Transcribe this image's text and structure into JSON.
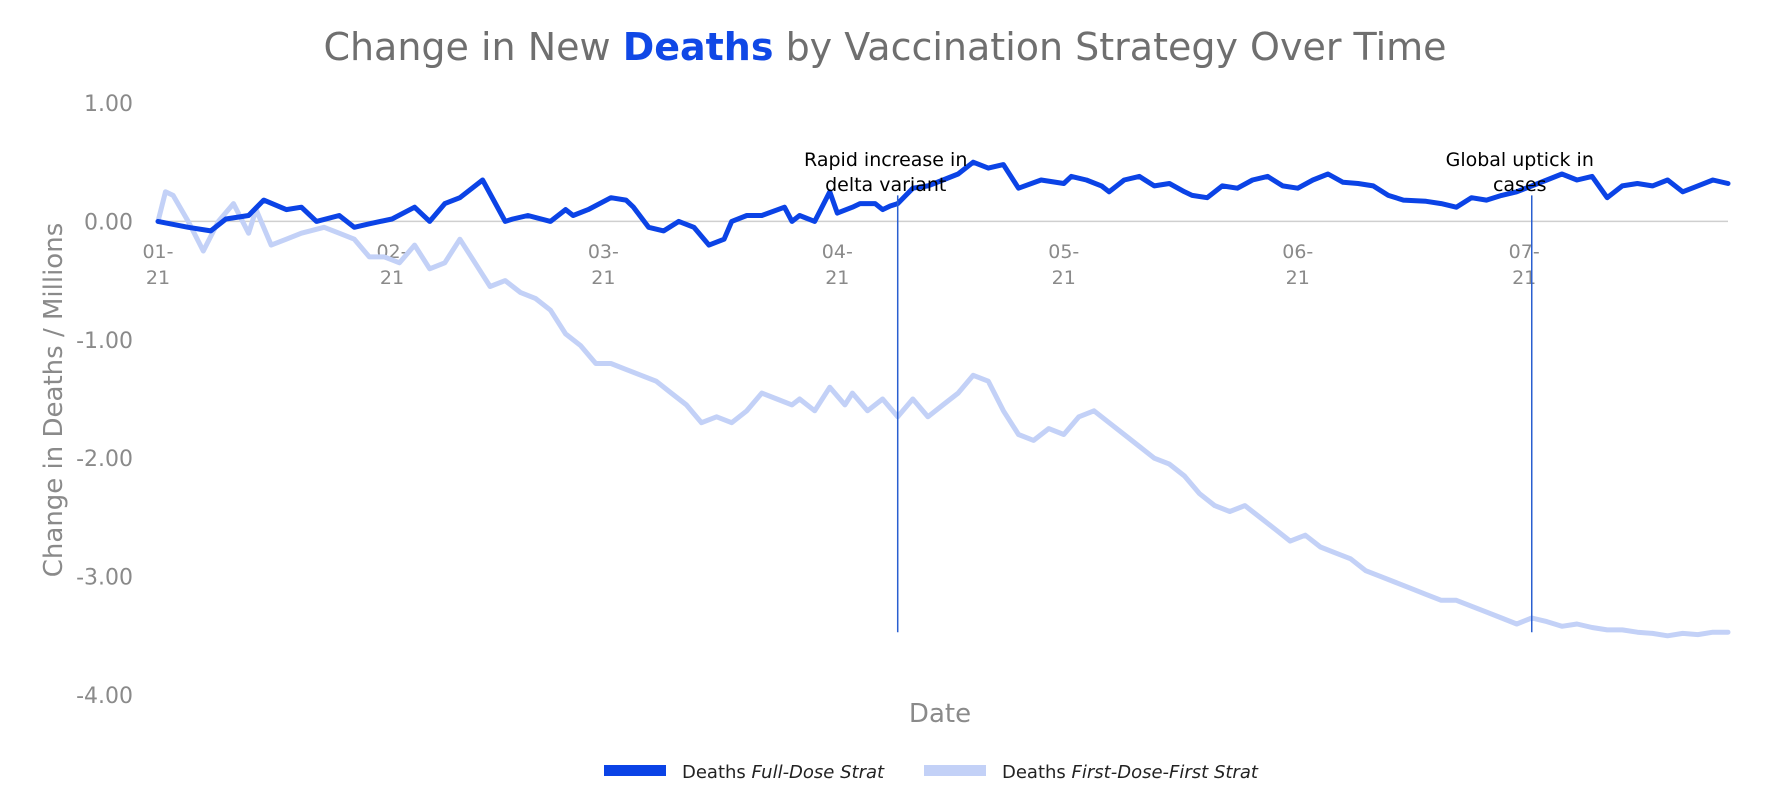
{
  "chart_data": {
    "type": "line",
    "title": {
      "prefix": "Change in New ",
      "highlight": "Deaths",
      "suffix": " by Vaccination Strategy Over Time"
    },
    "xlabel": "Date",
    "ylabel": "Change in Deaths / Millions",
    "ylim": [
      -4.0,
      1.0
    ],
    "yticks": [
      1.0,
      0.0,
      -1.0,
      -2.0,
      -3.0,
      -4.0
    ],
    "ytick_labels": [
      "1.00",
      "0.00",
      "-1.00",
      "-2.00",
      "-3.00",
      "-4.00"
    ],
    "xlim": [
      0,
      208
    ],
    "xticks": [
      {
        "x": 0,
        "line1": "01-",
        "line2": "21"
      },
      {
        "x": 31,
        "line1": "02-",
        "line2": "21"
      },
      {
        "x": 59,
        "line1": "03-",
        "line2": "21"
      },
      {
        "x": 90,
        "line1": "04-",
        "line2": "21"
      },
      {
        "x": 120,
        "line1": "05-",
        "line2": "21"
      },
      {
        "x": 151,
        "line1": "06-",
        "line2": "21"
      },
      {
        "x": 181,
        "line1": "07-",
        "line2": "21"
      }
    ],
    "grid": false,
    "legend_position": "bottom-center",
    "colors": {
      "full_dose": "#0b43e6",
      "first_dose": "#c3d1f7",
      "annotation_line": "#2a5fd0",
      "zero_line": "#cfcfcf"
    },
    "annotations": [
      {
        "x": 98,
        "y_end": -3.47,
        "lines": [
          "Rapid increase in",
          "delta variant"
        ]
      },
      {
        "x": 182,
        "y_end": -3.47,
        "lines": [
          "Global uptick in",
          "cases"
        ]
      }
    ],
    "series": [
      {
        "name": "Deaths Full-Dose Strat",
        "legend_prefix": "Deaths ",
        "legend_italic": "Full-Dose Strat",
        "x": [
          0,
          4,
          7,
          9,
          12,
          14,
          17,
          19,
          21,
          24,
          26,
          28,
          31,
          34,
          36,
          38,
          40,
          43,
          46,
          47,
          49,
          52,
          54,
          55,
          57,
          60,
          62,
          63,
          65,
          67,
          69,
          71,
          73,
          75,
          76,
          78,
          80,
          83,
          84,
          85,
          87,
          89,
          90,
          92,
          93,
          95,
          96,
          97,
          98,
          100,
          102,
          104,
          106,
          108,
          110,
          112,
          114,
          117,
          120,
          121,
          123,
          125,
          126,
          128,
          130,
          132,
          134,
          136,
          137,
          139,
          141,
          143,
          145,
          147,
          149,
          151,
          153,
          155,
          157,
          159,
          161,
          163,
          165,
          168,
          170,
          172,
          174,
          176,
          178,
          180,
          182,
          184,
          186,
          188,
          190,
          192,
          194,
          196,
          198,
          200,
          202,
          204,
          206,
          208
        ],
        "values": [
          0.0,
          -0.05,
          -0.08,
          0.02,
          0.05,
          0.18,
          0.1,
          0.12,
          0.0,
          0.05,
          -0.05,
          -0.02,
          0.02,
          0.12,
          0.0,
          0.15,
          0.2,
          0.35,
          0.0,
          0.02,
          0.05,
          0.0,
          0.1,
          0.05,
          0.1,
          0.2,
          0.18,
          0.12,
          -0.05,
          -0.08,
          0.0,
          -0.05,
          -0.2,
          -0.15,
          0.0,
          0.05,
          0.05,
          0.12,
          0.0,
          0.05,
          0.0,
          0.25,
          0.07,
          0.12,
          0.15,
          0.15,
          0.1,
          0.13,
          0.15,
          0.28,
          0.3,
          0.35,
          0.4,
          0.5,
          0.45,
          0.48,
          0.28,
          0.35,
          0.32,
          0.38,
          0.35,
          0.3,
          0.25,
          0.35,
          0.38,
          0.3,
          0.32,
          0.25,
          0.22,
          0.2,
          0.3,
          0.28,
          0.35,
          0.38,
          0.3,
          0.28,
          0.35,
          0.4,
          0.33,
          0.32,
          0.3,
          0.22,
          0.18,
          0.17,
          0.15,
          0.12,
          0.2,
          0.18,
          0.22,
          0.25,
          0.3,
          0.35,
          0.4,
          0.35,
          0.38,
          0.2,
          0.3,
          0.32,
          0.3,
          0.35,
          0.25,
          0.3,
          0.35,
          0.32
        ],
        "color": "#0b43e6",
        "width": 5
      },
      {
        "name": "Deaths First-Dose-First Strat",
        "legend_prefix": "Deaths ",
        "legend_italic": "First-Dose-First Strat",
        "x": [
          0,
          1,
          2,
          4,
          6,
          8,
          10,
          12,
          13,
          15,
          17,
          19,
          22,
          24,
          26,
          28,
          30,
          32,
          34,
          36,
          38,
          40,
          42,
          44,
          46,
          48,
          50,
          52,
          54,
          56,
          58,
          60,
          62,
          64,
          66,
          68,
          70,
          72,
          74,
          76,
          78,
          80,
          82,
          84,
          85,
          87,
          89,
          91,
          92,
          94,
          96,
          98,
          100,
          102,
          104,
          106,
          108,
          110,
          112,
          114,
          116,
          118,
          120,
          122,
          124,
          126,
          128,
          130,
          132,
          134,
          136,
          138,
          140,
          142,
          144,
          146,
          148,
          150,
          152,
          154,
          156,
          158,
          160,
          162,
          164,
          166,
          168,
          170,
          172,
          174,
          176,
          178,
          180,
          182,
          184,
          186,
          188,
          190,
          192,
          194,
          196,
          198,
          200,
          202,
          204,
          206,
          208
        ],
        "values": [
          0.0,
          0.25,
          0.22,
          0.0,
          -0.25,
          0.0,
          0.15,
          -0.1,
          0.1,
          -0.2,
          -0.15,
          -0.1,
          -0.05,
          -0.1,
          -0.15,
          -0.3,
          -0.3,
          -0.35,
          -0.2,
          -0.4,
          -0.35,
          -0.15,
          -0.35,
          -0.55,
          -0.5,
          -0.6,
          -0.65,
          -0.75,
          -0.95,
          -1.05,
          -1.2,
          -1.2,
          -1.25,
          -1.3,
          -1.35,
          -1.45,
          -1.55,
          -1.7,
          -1.65,
          -1.7,
          -1.6,
          -1.45,
          -1.5,
          -1.55,
          -1.5,
          -1.6,
          -1.4,
          -1.55,
          -1.45,
          -1.6,
          -1.5,
          -1.65,
          -1.5,
          -1.65,
          -1.55,
          -1.45,
          -1.3,
          -1.35,
          -1.6,
          -1.8,
          -1.85,
          -1.75,
          -1.8,
          -1.65,
          -1.6,
          -1.7,
          -1.8,
          -1.9,
          -2.0,
          -2.05,
          -2.15,
          -2.3,
          -2.4,
          -2.45,
          -2.4,
          -2.5,
          -2.6,
          -2.7,
          -2.65,
          -2.75,
          -2.8,
          -2.85,
          -2.95,
          -3.0,
          -3.05,
          -3.1,
          -3.15,
          -3.2,
          -3.2,
          -3.25,
          -3.3,
          -3.35,
          -3.4,
          -3.35,
          -3.38,
          -3.42,
          -3.4,
          -3.43,
          -3.45,
          -3.45,
          -3.47,
          -3.48,
          -3.5,
          -3.48,
          -3.49,
          -3.47,
          -3.47
        ],
        "color": "#c3d1f7",
        "width": 5
      }
    ]
  }
}
